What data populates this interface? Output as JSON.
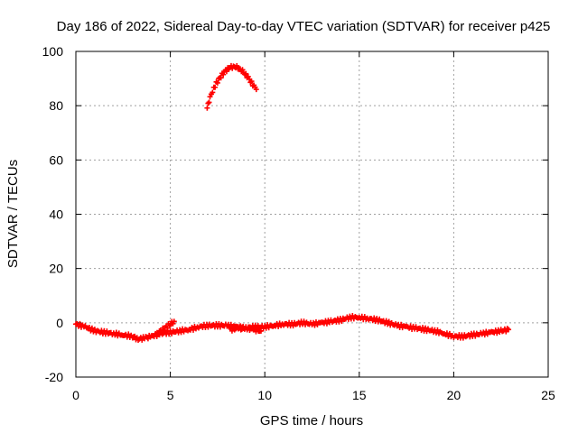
{
  "chart_data": {
    "type": "scatter",
    "title": "Day 186 of 2022, Sidereal Day-to-day VTEC variation (SDTVAR) for receiver p425",
    "xlabel": "GPS time / hours",
    "ylabel": "SDTVAR / TECUs",
    "xlim": [
      0,
      25
    ],
    "ylim": [
      -20,
      100
    ],
    "xticks": [
      0,
      5,
      10,
      15,
      20,
      25
    ],
    "yticks": [
      -20,
      0,
      20,
      40,
      60,
      80,
      100
    ],
    "xtick_labels": [
      "0",
      "5",
      "10",
      "15",
      "20",
      "25"
    ],
    "ytick_labels": [
      "-20",
      "0",
      "20",
      "40",
      "60",
      "80",
      "100"
    ],
    "grid": true,
    "marker_color": "#ff0000",
    "series": [
      {
        "name": "main-arc",
        "x": [
          0,
          0.5,
          1,
          1.5,
          2,
          2.5,
          3,
          3.3,
          3.7,
          4,
          4.5,
          5,
          5.5,
          6,
          6.5,
          7,
          7.5,
          8,
          8.5,
          9,
          9.5,
          10,
          10.5,
          11,
          11.5,
          12,
          12.5,
          13,
          13.5,
          14,
          14.5,
          15,
          15.5,
          16,
          16.5,
          17,
          17.5,
          18,
          18.5,
          19,
          19.5,
          20,
          20.5,
          21,
          21.5,
          22,
          22.5,
          22.9
        ],
        "y": [
          -0.5,
          -1.5,
          -3,
          -3.5,
          -4,
          -4.5,
          -5,
          -6,
          -5.5,
          -5,
          -4,
          -3.5,
          -3,
          -2.5,
          -1.5,
          -1,
          -1,
          -1,
          -1.5,
          -2,
          -1.5,
          -1.5,
          -1,
          -0.5,
          -0.5,
          0,
          -0.5,
          0,
          0.5,
          1,
          2,
          2,
          1.5,
          1,
          0,
          -1,
          -1.5,
          -2,
          -2.5,
          -3,
          -4,
          -5,
          -5,
          -4.5,
          -4,
          -3.5,
          -3,
          -2.5
        ]
      },
      {
        "name": "rising-segment",
        "x": [
          4.3,
          4.6,
          4.9,
          5.2
        ],
        "y": [
          -4,
          -2.5,
          -1,
          0.5
        ]
      },
      {
        "name": "low-segment",
        "x": [
          8.2,
          8.6,
          9,
          9.4,
          9.8
        ],
        "y": [
          -2.5,
          -2,
          -2,
          -2.5,
          -3
        ]
      },
      {
        "name": "high-arc",
        "x": [
          6.95,
          7.1,
          7.3,
          7.5,
          7.8,
          8.1,
          8.4,
          8.7,
          9.0,
          9.3,
          9.55
        ],
        "y": [
          79,
          83,
          86.5,
          89,
          92,
          94,
          94.5,
          93.5,
          91.5,
          88.5,
          86
        ]
      }
    ]
  }
}
